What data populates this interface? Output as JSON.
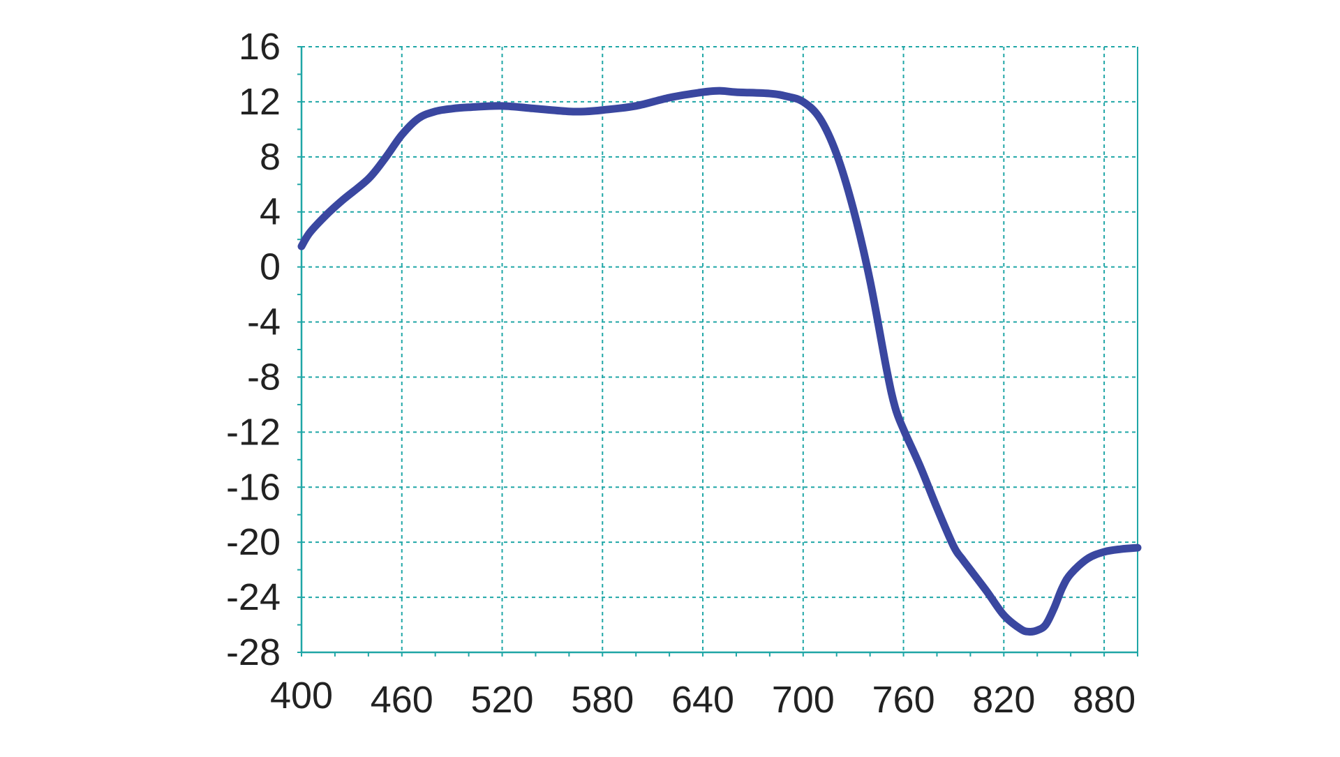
{
  "chart_data": {
    "type": "line",
    "title": "",
    "xlabel": "",
    "ylabel": "",
    "xlim": [
      400,
      900
    ],
    "ylim": [
      -28,
      16
    ],
    "xticks": [
      400,
      460,
      520,
      580,
      640,
      700,
      760,
      820,
      880
    ],
    "yticks": [
      16,
      12,
      8,
      4,
      0,
      -4,
      -8,
      -12,
      -16,
      -20,
      -24,
      -28
    ],
    "grid": true,
    "grid_style": "dashed",
    "colors": {
      "line": "#3a47a0",
      "grid": "#1fa6a6",
      "axis": "#1fa6a6",
      "text": "#222222"
    },
    "series": [
      {
        "x": [
          400,
          405,
          415,
          425,
          440,
          450,
          460,
          470,
          480,
          490,
          500,
          520,
          540,
          560,
          570,
          580,
          600,
          620,
          640,
          650,
          660,
          680,
          690,
          700,
          710,
          720,
          730,
          740,
          750,
          755,
          760,
          770,
          780,
          790,
          795,
          800,
          810,
          820,
          830,
          835,
          840,
          845,
          850,
          855,
          860,
          870,
          880,
          890,
          900
        ],
        "y": [
          1.5,
          2.5,
          3.8,
          4.9,
          6.4,
          7.9,
          9.6,
          10.8,
          11.3,
          11.5,
          11.6,
          11.7,
          11.5,
          11.3,
          11.3,
          11.4,
          11.7,
          12.3,
          12.7,
          12.8,
          12.7,
          12.6,
          12.4,
          12.0,
          10.8,
          8.2,
          4.2,
          -1.0,
          -7.5,
          -10.2,
          -11.8,
          -14.5,
          -17.5,
          -20.3,
          -21.2,
          -22.0,
          -23.6,
          -25.3,
          -26.3,
          -26.5,
          -26.4,
          -26.0,
          -24.8,
          -23.3,
          -22.3,
          -21.2,
          -20.7,
          -20.5,
          -20.4
        ]
      }
    ]
  }
}
